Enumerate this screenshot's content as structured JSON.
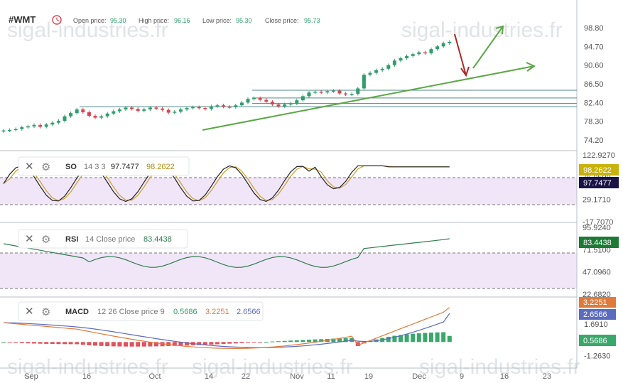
{
  "symbol": "#WMT",
  "header": {
    "open_label": "Open price:",
    "open_value": "95.30",
    "high_label": "High price:",
    "high_value": "96.16",
    "low_label": "Low price:",
    "low_value": "95.30",
    "close_label": "Close price:",
    "close_value": "95.73"
  },
  "watermark": "sigal-industries.fr",
  "colors": {
    "up": "#2e9e6b",
    "down": "#d8444f",
    "trend": "#5aa845",
    "arrow_down": "#b02828",
    "so_k": "#222222",
    "so_d": "#c9a227",
    "rsi": "#2e7d4f",
    "macd_line": "#e07a3a",
    "signal_line": "#5b6bbf",
    "osc_band": "#f1e6f8"
  },
  "so": {
    "name": "SO",
    "params": "14 3 3",
    "k_value": "97.7477",
    "d_value": "98.2622"
  },
  "rsi": {
    "name": "RSI",
    "params": "14 Close price",
    "value": "83.4438"
  },
  "macd": {
    "name": "MACD",
    "params": "12 26 Close price 9",
    "hist_value": "0.5686",
    "macd_value": "3.2251",
    "signal_value": "2.6566"
  },
  "chart_data": [
    {
      "type": "candlestick",
      "title": "#WMT",
      "ylim": [
        72.5,
        100.5
      ],
      "y_ticks": [
        "98.80",
        "94.70",
        "90.60",
        "86.50",
        "82.40",
        "78.30",
        "74.20"
      ],
      "x_ticks": [
        "Sep",
        "16",
        "Oct",
        "14",
        "22",
        "Nov",
        "11",
        "19",
        "Dec",
        "9",
        "16",
        "23"
      ],
      "closes": [
        76.3,
        76.4,
        76.6,
        77.0,
        77.2,
        77.5,
        77.1,
        77.6,
        78.0,
        78.4,
        79.4,
        80.1,
        80.9,
        80.3,
        79.5,
        79.1,
        79.4,
        80.0,
        80.5,
        80.9,
        81.3,
        81.0,
        80.6,
        80.9,
        81.3,
        81.1,
        80.8,
        80.2,
        80.4,
        80.9,
        81.2,
        81.4,
        81.2,
        81.0,
        81.6,
        81.8,
        81.5,
        81.4,
        81.8,
        82.4,
        83.2,
        83.4,
        83.0,
        82.6,
        82.0,
        81.6,
        82.0,
        82.2,
        82.9,
        83.8,
        84.6,
        84.8,
        84.6,
        84.9,
        85.0,
        84.4,
        84.2,
        84.3,
        85.5,
        88.5,
        88.9,
        89.5,
        89.8,
        90.6,
        91.6,
        92.1,
        92.6,
        93.0,
        93.4,
        93.2,
        94.1,
        94.7,
        95.4,
        95.7
      ],
      "levels": [
        85.1,
        83.4,
        82.2,
        81.5
      ],
      "annotations": [
        "rising trendline",
        "projected drop arrow",
        "projected rise arrow"
      ]
    },
    {
      "type": "line",
      "title": "SO 14 3 3",
      "series": [
        {
          "name": "%K",
          "last": 97.7477
        },
        {
          "name": "%D",
          "last": 98.2622
        }
      ],
      "y_ticks": [
        "122.9270",
        "76.0500",
        "29.1710",
        "-17.7070"
      ],
      "ylim": [
        -17.707,
        122.927
      ],
      "band": [
        20,
        80
      ]
    },
    {
      "type": "line",
      "title": "RSI 14 Close price",
      "series": [
        {
          "name": "RSI",
          "last": 83.4438
        }
      ],
      "y_ticks": [
        "95.9240",
        "71.5100",
        "47.0960",
        "22.6820"
      ],
      "ylim": [
        22.682,
        95.924
      ],
      "band": [
        30,
        70
      ]
    },
    {
      "type": "bar+line",
      "title": "MACD 12 26 Close price 9",
      "series": [
        {
          "name": "Histogram",
          "last": 0.5686
        },
        {
          "name": "MACD",
          "last": 3.2251
        },
        {
          "name": "Signal",
          "last": 2.6566
        }
      ],
      "y_ticks": [
        "1.6910",
        "-1.2630"
      ],
      "ylim": [
        -2.3,
        3.8
      ]
    }
  ]
}
